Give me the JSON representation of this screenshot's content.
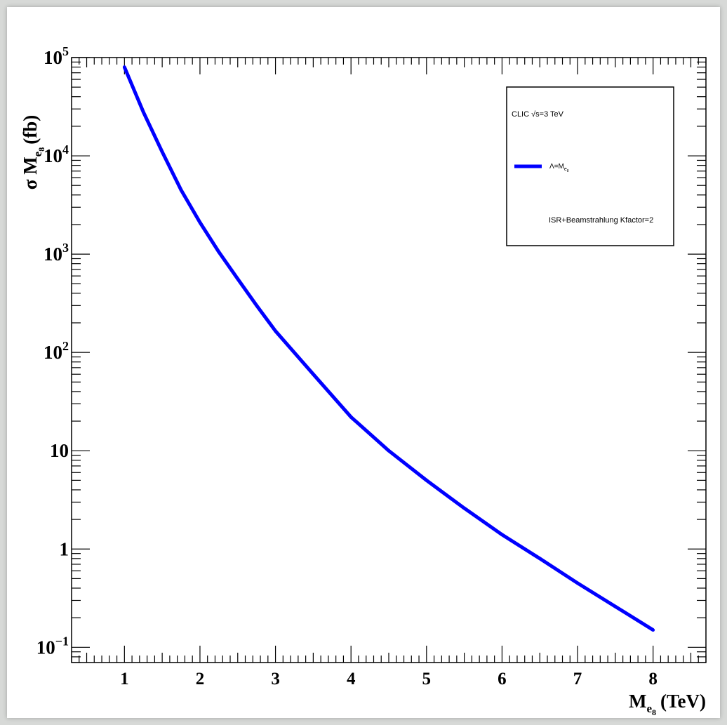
{
  "chart_data": {
    "type": "line",
    "title": "",
    "xlabel": {
      "base": "M",
      "sub": "e",
      "subsub": "8",
      "unit": "(TeV)"
    },
    "ylabel": {
      "prefix": "σ M",
      "sub": "e",
      "subsub": "8",
      "unit": "(fb)"
    },
    "xlim": [
      0.3,
      8.7
    ],
    "ylim": [
      0.07,
      100000
    ],
    "yscale": "log",
    "grid": false,
    "x_ticks": [
      "1",
      "2",
      "3",
      "4",
      "5",
      "6",
      "7",
      "8"
    ],
    "y_ticks": [
      {
        "value": 0.1,
        "base": "10",
        "exp": "−1"
      },
      {
        "value": 1,
        "base": "1",
        "exp": ""
      },
      {
        "value": 10,
        "base": "10",
        "exp": ""
      },
      {
        "value": 100,
        "base": "10",
        "exp": "2"
      },
      {
        "value": 1000,
        "base": "10",
        "exp": "3"
      },
      {
        "value": 10000,
        "base": "10",
        "exp": "4"
      },
      {
        "value": 100000,
        "base": "10",
        "exp": "5"
      }
    ],
    "legend": {
      "position": "top-right",
      "header": "CLIC √s=3 TeV",
      "entry_label": {
        "base": "Λ=M",
        "sub": "e",
        "subsub": "8"
      },
      "note": "ISR+Beamstrahlung Kfactor=2"
    },
    "series": [
      {
        "color": "#0000ff",
        "x": [
          1.0,
          1.25,
          1.5,
          1.75,
          2.0,
          2.25,
          2.5,
          2.75,
          3.0,
          3.5,
          4.0,
          4.5,
          5.0,
          5.5,
          6.0,
          6.5,
          7.0,
          7.5,
          8.0
        ],
        "y": [
          80000,
          28000,
          11000,
          4500,
          2100,
          1050,
          560,
          300,
          165,
          60,
          22,
          10,
          5,
          2.6,
          1.4,
          0.8,
          0.45,
          0.26,
          0.15
        ]
      }
    ]
  }
}
